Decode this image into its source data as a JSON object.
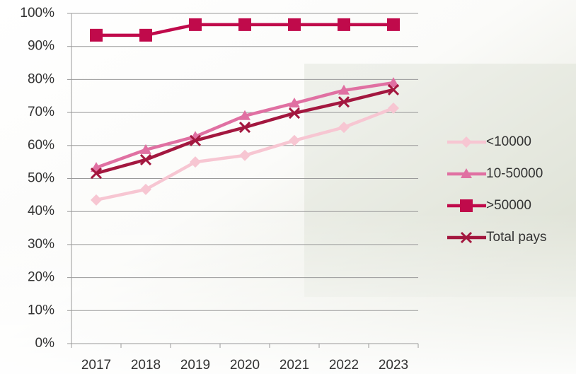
{
  "chart_data": {
    "type": "line",
    "categories": [
      "2017",
      "2018",
      "2019",
      "2020",
      "2021",
      "2022",
      "2023"
    ],
    "series": [
      {
        "name": "<10000",
        "color": "#f7c6d2",
        "marker": "diamond",
        "values": [
          43.5,
          46.7,
          55,
          57,
          61.5,
          65.5,
          71.3
        ]
      },
      {
        "name": "10-50000",
        "color": "#e070a2",
        "marker": "triangle",
        "values": [
          53.3,
          58.7,
          62.7,
          69,
          72.8,
          76.7,
          79
        ]
      },
      {
        "name": ">50000",
        "color": "#c00a4b",
        "marker": "square",
        "values": [
          93.4,
          93.4,
          96.6,
          96.6,
          96.6,
          96.6,
          96.6
        ]
      },
      {
        "name": "Total pays",
        "color": "#a3173f",
        "marker": "x",
        "values": [
          51.6,
          55.7,
          61.5,
          65.5,
          69.8,
          73.2,
          76.9
        ]
      }
    ],
    "ylim": [
      0,
      100
    ],
    "yticks": [
      {
        "value": 0,
        "label": "0%"
      },
      {
        "value": 10,
        "label": "10%"
      },
      {
        "value": 20,
        "label": "20%"
      },
      {
        "value": 30,
        "label": "30%"
      },
      {
        "value": 40,
        "label": "40%"
      },
      {
        "value": 50,
        "label": "50%"
      },
      {
        "value": 60,
        "label": "60%"
      },
      {
        "value": 70,
        "label": "70%"
      },
      {
        "value": 80,
        "label": "80%"
      },
      {
        "value": 90,
        "label": "90%"
      },
      {
        "value": 100,
        "label": "100%"
      }
    ],
    "grid": true,
    "legend": "right"
  }
}
